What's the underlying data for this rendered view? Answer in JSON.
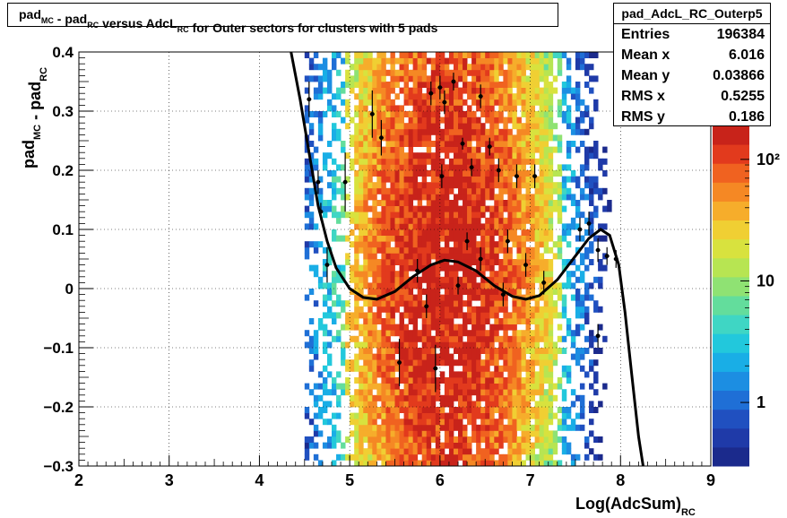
{
  "title": {
    "parts": [
      {
        "t": "pad",
        "s": "MC"
      },
      {
        "t": " - pad",
        "s": "RC"
      },
      {
        "t": " versus AdcL",
        "s": "RC"
      },
      {
        "t": " for Outer sectors for clusters with 5 pads",
        "s": ""
      }
    ]
  },
  "stats": {
    "name": "pad_AdcL_RC_Outerp5",
    "rows": [
      {
        "label": "Entries",
        "value": "196384"
      },
      {
        "label": "Mean x",
        "value": "6.016"
      },
      {
        "label": "Mean y",
        "value": "0.03866"
      },
      {
        "label": "RMS x",
        "value": "0.5255"
      },
      {
        "label": "RMS y",
        "value": "0.186"
      }
    ]
  },
  "chart_data": {
    "type": "heatmap",
    "xlabel": "Log(AdcSum)",
    "xlabel_sub": "RC",
    "ylabel": "pad",
    "ylabel_parts": [
      {
        "t": "pad",
        "s": "MC"
      },
      {
        "t": " - pad",
        "s": "RC"
      }
    ],
    "xlim": [
      2,
      9
    ],
    "ylim": [
      -0.3,
      0.4
    ],
    "xticks": [
      "2",
      "3",
      "4",
      "5",
      "6",
      "7",
      "8",
      "9"
    ],
    "yticks": [
      "−0.3",
      "−0.2",
      "−0.1",
      "0",
      "0.1",
      "0.2",
      "0.3",
      "0.4"
    ],
    "colorbar_labels": [
      {
        "value": 1,
        "text": "1"
      },
      {
        "value": 10,
        "text": "10"
      },
      {
        "value": 100,
        "text": "10²"
      }
    ],
    "colorbar_scale": "log",
    "colorbar_range": [
      0.3,
      190
    ],
    "grid": true,
    "profile_points": [
      {
        "x": 4.55,
        "y": 0.32,
        "ey": 0.03
      },
      {
        "x": 4.65,
        "y": 0.18,
        "ey": 0.02
      },
      {
        "x": 4.68,
        "y": 0.13,
        "ey": 0.015
      },
      {
        "x": 4.75,
        "y": 0.04,
        "ey": 0.03
      },
      {
        "x": 4.95,
        "y": 0.18,
        "ey": 0.05
      },
      {
        "x": 5.25,
        "y": 0.295,
        "ey": 0.04
      },
      {
        "x": 5.35,
        "y": 0.255,
        "ey": 0.03
      },
      {
        "x": 5.55,
        "y": -0.125,
        "ey": 0.04
      },
      {
        "x": 5.75,
        "y": 0.03,
        "ey": 0.02
      },
      {
        "x": 5.85,
        "y": -0.03,
        "ey": 0.02
      },
      {
        "x": 5.9,
        "y": 0.33,
        "ey": 0.02
      },
      {
        "x": 6.0,
        "y": 0.34,
        "ey": 0.02
      },
      {
        "x": 5.95,
        "y": -0.135,
        "ey": 0.04
      },
      {
        "x": 6.02,
        "y": 0.19,
        "ey": 0.02
      },
      {
        "x": 6.05,
        "y": 0.315,
        "ey": 0.02
      },
      {
        "x": 6.15,
        "y": 0.35,
        "ey": 0.015
      },
      {
        "x": 6.2,
        "y": 0.005,
        "ey": 0.015
      },
      {
        "x": 6.25,
        "y": 0.245,
        "ey": 0.01
      },
      {
        "x": 6.3,
        "y": 0.08,
        "ey": 0.015
      },
      {
        "x": 6.35,
        "y": 0.205,
        "ey": 0.015
      },
      {
        "x": 6.45,
        "y": 0.325,
        "ey": 0.02
      },
      {
        "x": 6.45,
        "y": 0.05,
        "ey": 0.02
      },
      {
        "x": 6.55,
        "y": 0.24,
        "ey": 0.015
      },
      {
        "x": 6.65,
        "y": 0.2,
        "ey": 0.02
      },
      {
        "x": 6.7,
        "y": -0.01,
        "ey": 0.02
      },
      {
        "x": 6.75,
        "y": 0.08,
        "ey": 0.02
      },
      {
        "x": 6.85,
        "y": 0.19,
        "ey": 0.02
      },
      {
        "x": 6.95,
        "y": 0.04,
        "ey": 0.02
      },
      {
        "x": 7.05,
        "y": 0.19,
        "ey": 0.02
      },
      {
        "x": 7.15,
        "y": 0.01,
        "ey": 0.02
      },
      {
        "x": 7.55,
        "y": 0.1,
        "ey": 0.02
      },
      {
        "x": 7.65,
        "y": 0.11,
        "ey": 0.02
      },
      {
        "x": 7.75,
        "y": 0.065,
        "ey": 0.02
      },
      {
        "x": 7.75,
        "y": -0.08,
        "ey": 0.02
      },
      {
        "x": 7.85,
        "y": 0.055,
        "ey": 0.015
      },
      {
        "x": 7.95,
        "y": 0.05,
        "ey": 0.015
      }
    ],
    "fit_curve": [
      {
        "x": 4.35,
        "y": 0.4
      },
      {
        "x": 4.45,
        "y": 0.32
      },
      {
        "x": 4.55,
        "y": 0.23
      },
      {
        "x": 4.65,
        "y": 0.14
      },
      {
        "x": 4.75,
        "y": 0.08
      },
      {
        "x": 4.85,
        "y": 0.035
      },
      {
        "x": 5.0,
        "y": 0.0
      },
      {
        "x": 5.15,
        "y": -0.015
      },
      {
        "x": 5.3,
        "y": -0.018
      },
      {
        "x": 5.5,
        "y": -0.005
      },
      {
        "x": 5.7,
        "y": 0.02
      },
      {
        "x": 5.9,
        "y": 0.04
      },
      {
        "x": 6.05,
        "y": 0.048
      },
      {
        "x": 6.2,
        "y": 0.045
      },
      {
        "x": 6.4,
        "y": 0.03
      },
      {
        "x": 6.6,
        "y": 0.005
      },
      {
        "x": 6.8,
        "y": -0.013
      },
      {
        "x": 6.95,
        "y": -0.018
      },
      {
        "x": 7.1,
        "y": -0.012
      },
      {
        "x": 7.3,
        "y": 0.015
      },
      {
        "x": 7.5,
        "y": 0.055
      },
      {
        "x": 7.65,
        "y": 0.085
      },
      {
        "x": 7.78,
        "y": 0.1
      },
      {
        "x": 7.88,
        "y": 0.09
      },
      {
        "x": 7.98,
        "y": 0.04
      },
      {
        "x": 8.05,
        "y": -0.04
      },
      {
        "x": 8.12,
        "y": -0.14
      },
      {
        "x": 8.2,
        "y": -0.25
      },
      {
        "x": 8.25,
        "y": -0.3
      }
    ]
  }
}
